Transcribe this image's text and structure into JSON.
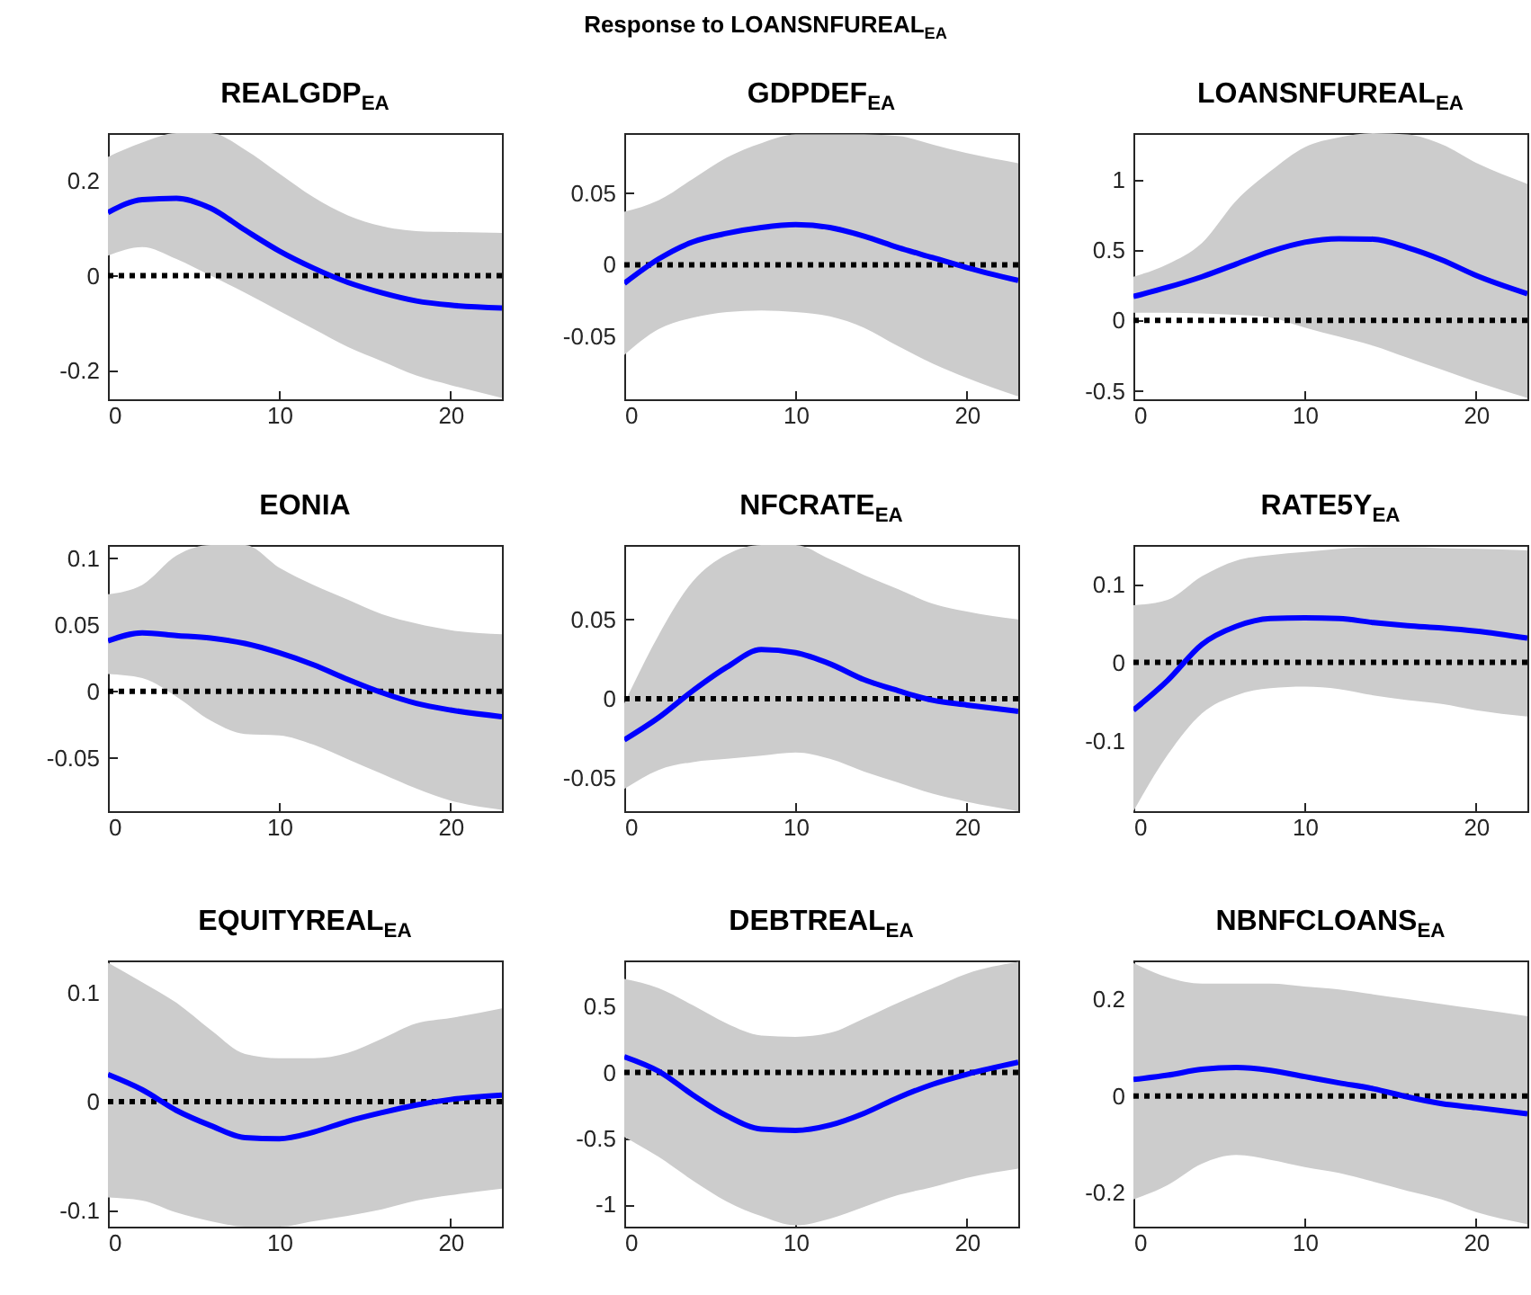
{
  "chart_data": [
    {
      "type": "line",
      "title": "REALGDP$_{EA}$",
      "annotations": [
        "Response to LOANSNFUREAL$_{EA}$"
      ],
      "x": [
        0,
        2,
        4,
        6,
        8,
        10,
        12,
        14,
        16,
        18,
        20,
        23
      ],
      "xlim": [
        0,
        23
      ],
      "xticks": [
        0,
        10,
        20
      ],
      "ylim": [
        -0.26,
        0.3
      ],
      "yticks": [
        -0.2,
        0,
        0.2
      ],
      "series": [
        {
          "color": "#0000ff",
          "values": [
            0.133,
            0.16,
            0.163,
            0.142,
            0.096,
            0.052,
            0.016,
            -0.014,
            -0.036,
            -0.053,
            -0.062,
            -0.068
          ],
          "lower": [
            0.042,
            0.06,
            0.035,
            0,
            -0.036,
            -0.074,
            -0.112,
            -0.15,
            -0.18,
            -0.21,
            -0.23,
            -0.257
          ],
          "upper": [
            0.25,
            0.28,
            0.3,
            0.3,
            0.265,
            0.215,
            0.165,
            0.127,
            0.104,
            0.094,
            0.092,
            0.09
          ]
        }
      ],
      "ref_lines": [
        {
          "axis": "y",
          "value": 0,
          "color": "#000000",
          "line_style": "dotted"
        }
      ]
    },
    {
      "type": "line",
      "title": "GDPDEF$_{EA}$",
      "x": [
        0,
        2,
        4,
        6,
        8,
        10,
        12,
        14,
        16,
        18,
        20,
        23
      ],
      "xlim": [
        0,
        23
      ],
      "xticks": [
        0,
        10,
        20
      ],
      "ylim": [
        -0.094,
        0.092
      ],
      "yticks": [
        -0.05,
        0,
        0.05
      ],
      "series": [
        {
          "color": "#0000ff",
          "values": [
            -0.013,
            0.004,
            0.016,
            0.022,
            0.026,
            0.028,
            0.026,
            0.02,
            0.012,
            0.005,
            -0.002,
            -0.011
          ],
          "lower": [
            -0.063,
            -0.045,
            -0.037,
            -0.033,
            -0.032,
            -0.033,
            -0.036,
            -0.044,
            -0.057,
            -0.069,
            -0.079,
            -0.092
          ],
          "upper": [
            0.037,
            0.045,
            0.06,
            0.075,
            0.085,
            0.091,
            0.091,
            0.091,
            0.09,
            0.084,
            0.078,
            0.071
          ]
        }
      ],
      "ref_lines": [
        {
          "axis": "y",
          "value": 0,
          "color": "#000000",
          "line_style": "dotted"
        }
      ]
    },
    {
      "type": "line",
      "title": "LOANSNFUREAL$_{EA}$",
      "x": [
        0,
        2,
        4,
        6,
        8,
        10,
        12,
        14,
        16,
        18,
        20,
        23
      ],
      "xlim": [
        0,
        23
      ],
      "xticks": [
        0,
        10,
        20
      ],
      "ylim": [
        -0.56,
        1.33
      ],
      "yticks": [
        -0.5,
        0,
        0.5,
        1
      ],
      "series": [
        {
          "color": "#0000ff",
          "values": [
            0.17,
            0.235,
            0.31,
            0.4,
            0.49,
            0.555,
            0.58,
            0.577,
            0.517,
            0.43,
            0.32,
            0.19
          ],
          "lower": [
            0.055,
            0.055,
            0.05,
            0.04,
            0.02,
            -0.05,
            -0.115,
            -0.18,
            -0.265,
            -0.35,
            -0.435,
            -0.55
          ],
          "upper": [
            0.31,
            0.4,
            0.55,
            0.85,
            1.06,
            1.23,
            1.3,
            1.33,
            1.32,
            1.25,
            1.12,
            0.97
          ]
        }
      ],
      "ref_lines": [
        {
          "axis": "y",
          "value": 0,
          "color": "#000000",
          "line_style": "dotted"
        }
      ]
    },
    {
      "type": "line",
      "title": "EONIA",
      "x": [
        0,
        2,
        4,
        6,
        8,
        10,
        12,
        14,
        16,
        18,
        20,
        23
      ],
      "xlim": [
        0,
        23
      ],
      "xticks": [
        0,
        10,
        20
      ],
      "ylim": [
        -0.09,
        0.11
      ],
      "yticks": [
        -0.05,
        0,
        0.05,
        0.1
      ],
      "series": [
        {
          "color": "#0000ff",
          "values": [
            0.038,
            0.044,
            0.042,
            0.04,
            0.036,
            0.029,
            0.02,
            0.009,
            -0.001,
            -0.009,
            -0.014,
            -0.019
          ],
          "lower": [
            0.013,
            0.01,
            -0.004,
            -0.022,
            -0.032,
            -0.033,
            -0.04,
            -0.051,
            -0.062,
            -0.073,
            -0.082,
            -0.089
          ],
          "upper": [
            0.073,
            0.08,
            0.102,
            0.11,
            0.11,
            0.093,
            0.08,
            0.069,
            0.058,
            0.051,
            0.046,
            0.043
          ]
        }
      ],
      "ref_lines": [
        {
          "axis": "y",
          "value": 0,
          "color": "#000000",
          "line_style": "dotted"
        }
      ]
    },
    {
      "type": "line",
      "title": "NFCRATE$_{EA}$",
      "x": [
        0,
        2,
        4,
        6,
        8,
        10,
        12,
        14,
        16,
        18,
        20,
        23
      ],
      "xlim": [
        0,
        23
      ],
      "xticks": [
        0,
        10,
        20
      ],
      "ylim": [
        -0.071,
        0.097
      ],
      "yticks": [
        -0.05,
        0,
        0.05
      ],
      "series": [
        {
          "color": "#0000ff",
          "values": [
            -0.026,
            -0.012,
            0.005,
            0.02,
            0.031,
            0.029,
            0.022,
            0.012,
            0.005,
            -0.001,
            -0.004,
            -0.008
          ],
          "lower": [
            -0.057,
            -0.045,
            -0.04,
            -0.038,
            -0.036,
            -0.034,
            -0.038,
            -0.046,
            -0.053,
            -0.06,
            -0.065,
            -0.071
          ],
          "upper": [
            -0.003,
            0.04,
            0.074,
            0.091,
            0.097,
            0.097,
            0.088,
            0.078,
            0.069,
            0.06,
            0.055,
            0.05
          ]
        }
      ],
      "ref_lines": [
        {
          "axis": "y",
          "value": 0,
          "color": "#000000",
          "line_style": "dotted"
        }
      ]
    },
    {
      "type": "line",
      "title": "RATE5Y$_{EA}$",
      "x": [
        0,
        2,
        4,
        6,
        8,
        10,
        12,
        14,
        16,
        18,
        20,
        23
      ],
      "xlim": [
        0,
        23
      ],
      "xticks": [
        0,
        10,
        20
      ],
      "ylim": [
        -0.19,
        0.15
      ],
      "yticks": [
        -0.1,
        0,
        0.1
      ],
      "series": [
        {
          "color": "#0000ff",
          "values": [
            -0.061,
            -0.023,
            0.023,
            0.046,
            0.056,
            0.057,
            0.056,
            0.051,
            0.047,
            0.044,
            0.04,
            0.031
          ],
          "lower": [
            -0.19,
            -0.118,
            -0.065,
            -0.042,
            -0.033,
            -0.031,
            -0.034,
            -0.042,
            -0.048,
            -0.053,
            -0.061,
            -0.069
          ],
          "upper": [
            0.073,
            0.08,
            0.11,
            0.13,
            0.137,
            0.141,
            0.145,
            0.147,
            0.147,
            0.146,
            0.145,
            0.143
          ]
        }
      ],
      "ref_lines": [
        {
          "axis": "y",
          "value": 0,
          "color": "#000000",
          "line_style": "dotted"
        }
      ]
    },
    {
      "type": "line",
      "title": "EQUITYREAL$_{EA}$",
      "x": [
        0,
        2,
        4,
        6,
        8,
        10,
        12,
        14,
        16,
        18,
        20,
        23
      ],
      "xlim": [
        0,
        23
      ],
      "xticks": [
        0,
        10,
        20
      ],
      "ylim": [
        -0.115,
        0.13
      ],
      "yticks": [
        -0.1,
        0,
        0.1
      ],
      "series": [
        {
          "color": "#0000ff",
          "values": [
            0.025,
            0.011,
            -0.008,
            -0.022,
            -0.033,
            -0.034,
            -0.028,
            -0.018,
            -0.01,
            -0.003,
            0.002,
            0.006
          ],
          "lower": [
            -0.088,
            -0.091,
            -0.102,
            -0.11,
            -0.115,
            -0.115,
            -0.11,
            -0.105,
            -0.099,
            -0.091,
            -0.086,
            -0.08
          ],
          "upper": [
            0.128,
            0.11,
            0.091,
            0.066,
            0.044,
            0.04,
            0.04,
            0.045,
            0.058,
            0.072,
            0.077,
            0.086
          ]
        }
      ],
      "ref_lines": [
        {
          "axis": "y",
          "value": 0,
          "color": "#000000",
          "line_style": "dotted"
        }
      ]
    },
    {
      "type": "line",
      "title": "DEBTREAL$_{EA}$",
      "x": [
        0,
        2,
        4,
        6,
        8,
        10,
        12,
        14,
        16,
        18,
        20,
        23
      ],
      "xlim": [
        0,
        23
      ],
      "xticks": [
        0,
        10,
        20
      ],
      "ylim": [
        -1.17,
        0.85
      ],
      "yticks": [
        -1,
        -0.5,
        0,
        0.5
      ],
      "series": [
        {
          "color": "#0000ff",
          "values": [
            0.12,
            0.01,
            -0.17,
            -0.33,
            -0.43,
            -0.44,
            -0.4,
            -0.31,
            -0.19,
            -0.09,
            -0.014,
            0.077
          ],
          "lower": [
            -0.49,
            -0.64,
            -0.82,
            -0.98,
            -1.09,
            -1.16,
            -1.11,
            -1.02,
            -0.93,
            -0.87,
            -0.8,
            -0.73
          ],
          "upper": [
            0.71,
            0.64,
            0.51,
            0.37,
            0.28,
            0.27,
            0.3,
            0.41,
            0.53,
            0.64,
            0.75,
            0.84
          ]
        }
      ],
      "ref_lines": [
        {
          "axis": "y",
          "value": 0,
          "color": "#000000",
          "line_style": "dotted"
        }
      ]
    },
    {
      "type": "line",
      "title": "NBNFCLOANS$_{EA}$",
      "x": [
        0,
        2,
        4,
        6,
        8,
        10,
        12,
        14,
        16,
        18,
        20,
        23
      ],
      "xlim": [
        0,
        23
      ],
      "xticks": [
        0,
        10,
        20
      ],
      "ylim": [
        -0.27,
        0.28
      ],
      "yticks": [
        -0.2,
        0,
        0.2
      ],
      "series": [
        {
          "color": "#0000ff",
          "values": [
            0.034,
            0.043,
            0.055,
            0.059,
            0.053,
            0.04,
            0.027,
            0.015,
            -0.002,
            -0.016,
            -0.024,
            -0.037
          ],
          "lower": [
            -0.214,
            -0.184,
            -0.14,
            -0.122,
            -0.132,
            -0.147,
            -0.159,
            -0.177,
            -0.196,
            -0.214,
            -0.24,
            -0.265
          ],
          "upper": [
            0.275,
            0.245,
            0.232,
            0.232,
            0.232,
            0.226,
            0.22,
            0.21,
            0.2,
            0.19,
            0.18,
            0.165
          ]
        }
      ],
      "ref_lines": [
        {
          "axis": "y",
          "value": 0,
          "color": "#000000",
          "line_style": "dotted"
        }
      ]
    }
  ]
}
